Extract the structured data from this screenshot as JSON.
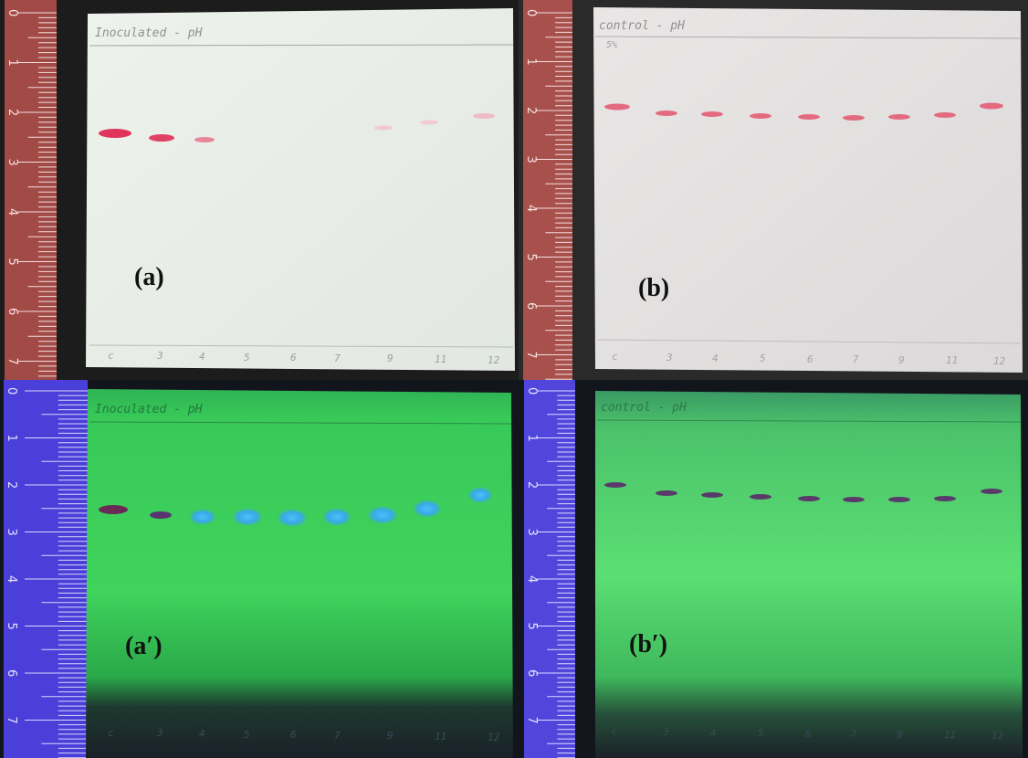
{
  "figure": {
    "panels": [
      {
        "id": "a",
        "label": "(a)",
        "plate_title": "Inoculated - pH",
        "lighting": "visible",
        "lane_marks": [
          "c",
          "3",
          "4",
          "5",
          "6",
          "7",
          "9",
          "11",
          "12"
        ],
        "ruler_marks": [
          "0",
          "1",
          "2",
          "3",
          "4",
          "5",
          "6",
          "7"
        ],
        "colors": {
          "plate": "#e9eee8",
          "ruler": "#a24a46",
          "spot": "#e0345a",
          "background": "#1a1a1a"
        }
      },
      {
        "id": "b",
        "label": "(b)",
        "plate_title": "control - pH",
        "plate_note": "5%",
        "lighting": "visible",
        "lane_marks": [
          "c",
          "3",
          "4",
          "5",
          "6",
          "7",
          "9",
          "11",
          "12"
        ],
        "ruler_marks": [
          "0",
          "1",
          "2",
          "3",
          "4",
          "5",
          "6",
          "7"
        ],
        "colors": {
          "plate": "#e4e1e1",
          "ruler": "#a8504c",
          "spot": "#e0506a",
          "background": "#2a2a2a"
        }
      },
      {
        "id": "a-prime",
        "label": "(a′)",
        "plate_title": "Inoculated - pH",
        "lighting": "uv-254",
        "lane_marks": [
          "c",
          "3",
          "4",
          "5",
          "6",
          "7",
          "9",
          "11",
          "12"
        ],
        "ruler_marks": [
          "0",
          "1",
          "2",
          "3",
          "4",
          "5",
          "6",
          "7"
        ],
        "colors": {
          "plate": "#3fd35c",
          "ruler": "#4a3fd8",
          "spot_dark": "#6a2a55",
          "spot_blue": "#3fb6f2",
          "background": "#101418"
        }
      },
      {
        "id": "b-prime",
        "label": "(b′)",
        "plate_title": "control - pH",
        "lighting": "uv-254",
        "lane_marks": [
          "c",
          "3",
          "4",
          "5",
          "6",
          "7",
          "9",
          "11",
          "12"
        ],
        "ruler_marks": [
          "0",
          "1",
          "2",
          "3",
          "4",
          "5",
          "6",
          "7"
        ],
        "colors": {
          "plate": "#5bdf73",
          "ruler": "#5046dc",
          "spot_dark": "#5a3a6a",
          "background": "#101418"
        }
      }
    ]
  }
}
